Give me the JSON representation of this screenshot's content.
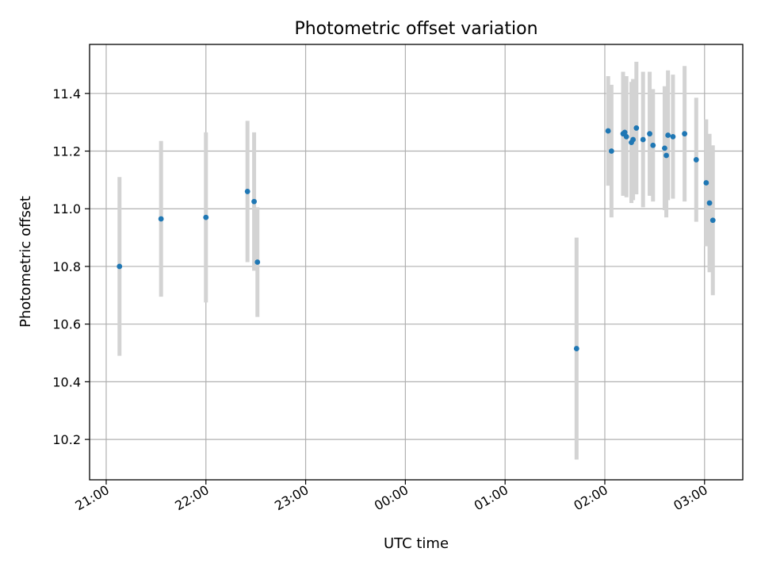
{
  "chart_data": {
    "type": "scatter",
    "title": "Photometric offset variation",
    "xlabel": "UTC time",
    "ylabel": "Photometric offset",
    "x_axis_kind": "time",
    "x_ticks": [
      "21:00",
      "22:00",
      "23:00",
      "00:00",
      "01:00",
      "02:00",
      "03:00"
    ],
    "y_ticks": [
      "10.2",
      "10.4",
      "10.6",
      "10.8",
      "11.0",
      "11.2",
      "11.4"
    ],
    "xlim": [
      "20:50",
      "03:23"
    ],
    "ylim": [
      10.06,
      11.57
    ],
    "grid": true,
    "colors": {
      "point": "#1f77b4",
      "errorbar": "#d3d3d3"
    },
    "points": [
      {
        "x": "21:08",
        "y": 10.8,
        "err": 0.31
      },
      {
        "x": "21:33",
        "y": 10.965,
        "err": 0.27
      },
      {
        "x": "22:00",
        "y": 10.97,
        "err": 0.295
      },
      {
        "x": "22:25",
        "y": 11.06,
        "err": 0.245
      },
      {
        "x": "22:29",
        "y": 11.025,
        "err": 0.24
      },
      {
        "x": "22:31",
        "y": 10.815,
        "err": 0.19
      },
      {
        "x": "01:43",
        "y": 10.515,
        "err": 0.385
      },
      {
        "x": "02:02",
        "y": 11.27,
        "err": 0.19
      },
      {
        "x": "02:04",
        "y": 11.2,
        "err": 0.23
      },
      {
        "x": "02:11",
        "y": 11.26,
        "err": 0.215
      },
      {
        "x": "02:12",
        "y": 11.265,
        "err": 0.195
      },
      {
        "x": "02:13",
        "y": 11.25,
        "err": 0.21
      },
      {
        "x": "02:16",
        "y": 11.23,
        "err": 0.21
      },
      {
        "x": "02:17",
        "y": 11.24,
        "err": 0.21
      },
      {
        "x": "02:19",
        "y": 11.28,
        "err": 0.23
      },
      {
        "x": "02:23",
        "y": 11.24,
        "err": 0.235
      },
      {
        "x": "02:27",
        "y": 11.26,
        "err": 0.215
      },
      {
        "x": "02:29",
        "y": 11.22,
        "err": 0.195
      },
      {
        "x": "02:36",
        "y": 11.21,
        "err": 0.215
      },
      {
        "x": "02:37",
        "y": 11.185,
        "err": 0.215
      },
      {
        "x": "02:38",
        "y": 11.255,
        "err": 0.225
      },
      {
        "x": "02:41",
        "y": 11.25,
        "err": 0.215
      },
      {
        "x": "02:48",
        "y": 11.26,
        "err": 0.235
      },
      {
        "x": "02:55",
        "y": 11.17,
        "err": 0.215
      },
      {
        "x": "03:01",
        "y": 11.09,
        "err": 0.22
      },
      {
        "x": "03:03",
        "y": 11.02,
        "err": 0.24
      },
      {
        "x": "03:05",
        "y": 10.96,
        "err": 0.26
      }
    ]
  }
}
